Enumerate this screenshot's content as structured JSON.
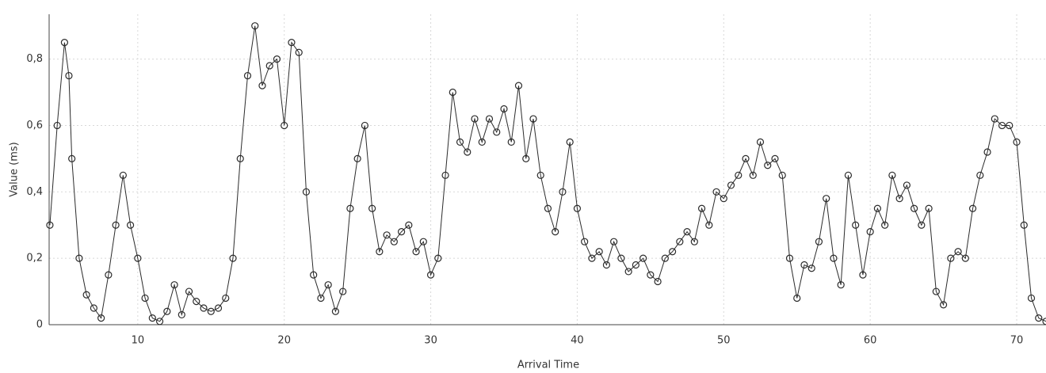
{
  "chart_data": {
    "type": "line",
    "x_label": "Arrival Time",
    "y_label": "Value (ms)",
    "color": "#2b2b2b",
    "grid": true,
    "markers": "circle",
    "xlim": [
      3.95,
      72
    ],
    "ylim": [
      0,
      0.935
    ],
    "xticks": [
      10,
      20,
      30,
      40,
      50,
      60,
      70
    ],
    "yticks": [
      0,
      {
        "value": 0.2,
        "label": "0,2"
      },
      {
        "value": 0.4,
        "label": "0,4"
      },
      {
        "value": 0.6,
        "label": "0,6"
      },
      {
        "value": 0.8,
        "label": "0,8"
      }
    ],
    "x": [
      4.0,
      4.5,
      5.0,
      5.3,
      5.5,
      6.0,
      6.5,
      7.0,
      7.5,
      8.0,
      8.5,
      9.0,
      9.5,
      10.0,
      10.5,
      11.0,
      11.5,
      12.0,
      12.5,
      13.0,
      13.5,
      14.0,
      14.5,
      15.0,
      15.5,
      16.0,
      16.5,
      17.0,
      17.5,
      18.0,
      18.5,
      19.0,
      19.5,
      20.0,
      20.5,
      21.0,
      21.5,
      22.0,
      22.5,
      23.0,
      23.5,
      24.0,
      24.5,
      25.0,
      25.5,
      26.0,
      26.5,
      27.0,
      27.5,
      28.0,
      28.5,
      29.0,
      29.5,
      30.0,
      30.5,
      31.0,
      31.5,
      32.0,
      32.5,
      33.0,
      33.5,
      34.0,
      34.5,
      35.0,
      35.5,
      36.0,
      36.5,
      37.0,
      37.5,
      38.0,
      38.5,
      39.0,
      39.5,
      40.0,
      40.5,
      41.0,
      41.5,
      42.0,
      42.5,
      43.0,
      43.5,
      44.0,
      44.5,
      45.0,
      45.5,
      46.0,
      46.5,
      47.0,
      47.5,
      48.0,
      48.5,
      49.0,
      49.5,
      50.0,
      50.5,
      51.0,
      51.5,
      52.0,
      52.5,
      53.0,
      53.5,
      54.0,
      54.5,
      55.0,
      55.5,
      56.0,
      56.5,
      57.0,
      57.5,
      58.0,
      58.5,
      59.0,
      59.5,
      60.0,
      60.5,
      61.0,
      61.5,
      62.0,
      62.5,
      63.0,
      63.5,
      64.0,
      64.5,
      65.0,
      65.5,
      66.0,
      66.5,
      67.0,
      67.5,
      68.0,
      68.5,
      69.0,
      69.5,
      70.0,
      70.5,
      71.0,
      71.5,
      72.0
    ],
    "values": [
      0.3,
      0.6,
      0.85,
      0.75,
      0.5,
      0.2,
      0.09,
      0.05,
      0.02,
      0.15,
      0.3,
      0.45,
      0.3,
      0.2,
      0.08,
      0.02,
      0.01,
      0.04,
      0.12,
      0.03,
      0.1,
      0.07,
      0.05,
      0.04,
      0.05,
      0.08,
      0.2,
      0.5,
      0.75,
      0.9,
      0.72,
      0.78,
      0.8,
      0.6,
      0.85,
      0.82,
      0.4,
      0.15,
      0.08,
      0.12,
      0.04,
      0.1,
      0.35,
      0.5,
      0.6,
      0.35,
      0.22,
      0.27,
      0.25,
      0.28,
      0.3,
      0.22,
      0.25,
      0.15,
      0.2,
      0.45,
      0.7,
      0.55,
      0.52,
      0.62,
      0.55,
      0.62,
      0.58,
      0.65,
      0.55,
      0.72,
      0.5,
      0.62,
      0.45,
      0.35,
      0.28,
      0.4,
      0.55,
      0.35,
      0.25,
      0.2,
      0.22,
      0.18,
      0.25,
      0.2,
      0.16,
      0.18,
      0.2,
      0.15,
      0.13,
      0.2,
      0.22,
      0.25,
      0.28,
      0.25,
      0.35,
      0.3,
      0.4,
      0.38,
      0.42,
      0.45,
      0.5,
      0.45,
      0.55,
      0.48,
      0.5,
      0.45,
      0.2,
      0.08,
      0.18,
      0.17,
      0.25,
      0.38,
      0.2,
      0.12,
      0.45,
      0.3,
      0.15,
      0.28,
      0.35,
      0.3,
      0.45,
      0.38,
      0.42,
      0.35,
      0.3,
      0.35,
      0.1,
      0.06,
      0.2,
      0.22,
      0.2,
      0.35,
      0.45,
      0.52,
      0.62,
      0.6,
      0.6,
      0.55,
      0.3,
      0.08,
      0.02,
      0.01
    ]
  }
}
